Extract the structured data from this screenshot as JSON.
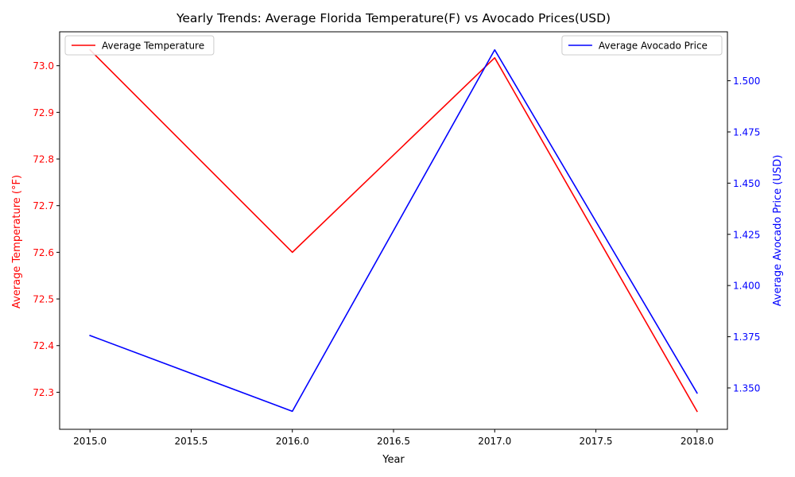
{
  "chart_data": {
    "type": "line",
    "title": "Yearly Trends: Average Florida Temperature(F) vs Avocado Prices(USD)",
    "xlabel": "Year",
    "x": [
      2015,
      2016,
      2017,
      2018
    ],
    "xlim": [
      2014.85,
      2018.15
    ],
    "x_ticks": [
      2015.0,
      2015.5,
      2016.0,
      2016.5,
      2017.0,
      2017.5,
      2018.0
    ],
    "x_tick_labels": [
      "2015.0",
      "2015.5",
      "2016.0",
      "2016.5",
      "2017.0",
      "2017.5",
      "2018.0"
    ],
    "grid": false,
    "series": [
      {
        "name": "Average Temperature",
        "axis": "left",
        "color": "#ff0000",
        "values": [
          73.034,
          72.6,
          73.017,
          72.259
        ]
      },
      {
        "name": "Average Avocado Price",
        "axis": "right",
        "color": "#0000ff",
        "values": [
          1.3756,
          1.3386,
          1.5151,
          1.3475
        ]
      }
    ],
    "y_left": {
      "label": "Average Temperature (°F)",
      "color": "#ff0000",
      "lim": [
        72.2206,
        73.0727
      ],
      "ticks": [
        72.3,
        72.4,
        72.5,
        72.6,
        72.7,
        72.8,
        72.9,
        73.0
      ],
      "tick_labels": [
        "72.3",
        "72.4",
        "72.5",
        "72.6",
        "72.7",
        "72.8",
        "72.9",
        "73.0"
      ]
    },
    "y_right": {
      "label": "Average Avocado Price (USD)",
      "color": "#0000ff",
      "lim": [
        1.3298,
        1.5239
      ],
      "ticks": [
        1.35,
        1.375,
        1.4,
        1.425,
        1.45,
        1.475,
        1.5
      ],
      "tick_labels": [
        "1.350",
        "1.375",
        "1.400",
        "1.425",
        "1.450",
        "1.475",
        "1.500"
      ]
    },
    "legends": [
      {
        "position": "upper-left",
        "entries": [
          "Average Temperature"
        ]
      },
      {
        "position": "upper-right",
        "entries": [
          "Average Avocado Price"
        ]
      }
    ]
  }
}
